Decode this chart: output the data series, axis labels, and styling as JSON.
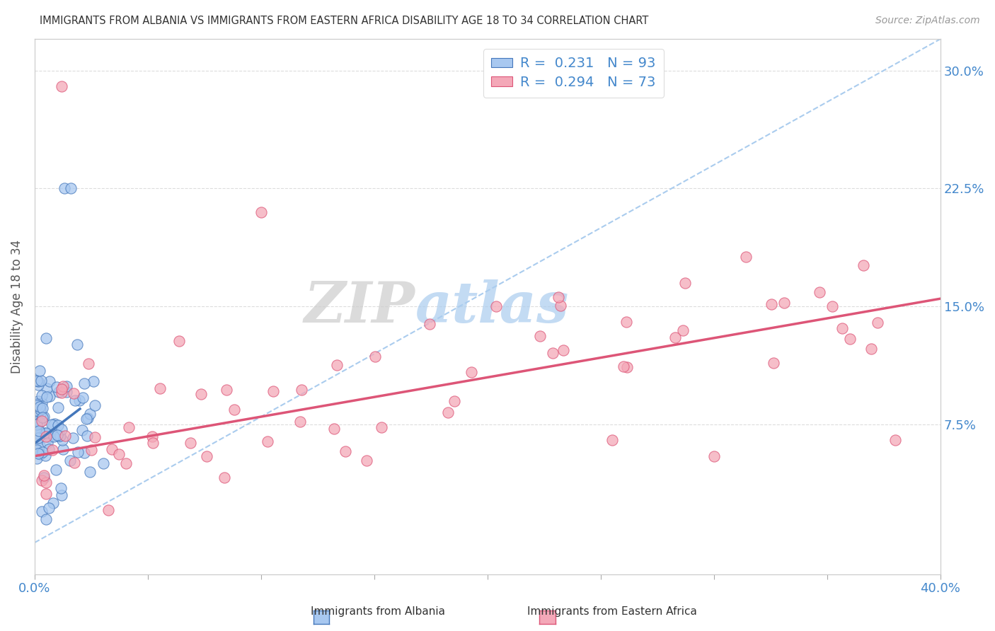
{
  "title": "IMMIGRANTS FROM ALBANIA VS IMMIGRANTS FROM EASTERN AFRICA DISABILITY AGE 18 TO 34 CORRELATION CHART",
  "source": "Source: ZipAtlas.com",
  "ylabel": "Disability Age 18 to 34",
  "yticks": [
    "7.5%",
    "15.0%",
    "22.5%",
    "30.0%"
  ],
  "ytick_values": [
    0.075,
    0.15,
    0.225,
    0.3
  ],
  "xlim": [
    0.0,
    0.4
  ],
  "ylim": [
    -0.02,
    0.32
  ],
  "watermark_zip": "ZIP",
  "watermark_atlas": "atlas",
  "legend_r1": "R = 0.231",
  "legend_n1": "N = 93",
  "legend_r2": "R = 0.294",
  "legend_n2": "N = 73",
  "series1_color": "#a8c8f0",
  "series2_color": "#f4a8b8",
  "trendline1_color": "#4477bb",
  "trendline2_color": "#dd5577",
  "ref_line_color": "#aaccee",
  "legend_label1": "Immigrants from Albania",
  "legend_label2": "Immigrants from Eastern Africa",
  "background_color": "#ffffff"
}
